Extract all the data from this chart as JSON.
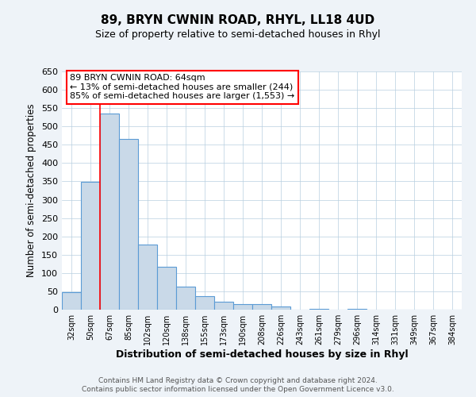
{
  "title": "89, BRYN CWNIN ROAD, RHYL, LL18 4UD",
  "subtitle": "Size of property relative to semi-detached houses in Rhyl",
  "xlabel": "Distribution of semi-detached houses by size in Rhyl",
  "ylabel": "Number of semi-detached properties",
  "bin_labels": [
    "32sqm",
    "50sqm",
    "67sqm",
    "85sqm",
    "102sqm",
    "120sqm",
    "138sqm",
    "155sqm",
    "173sqm",
    "190sqm",
    "208sqm",
    "226sqm",
    "243sqm",
    "261sqm",
    "279sqm",
    "296sqm",
    "314sqm",
    "331sqm",
    "349sqm",
    "367sqm",
    "384sqm"
  ],
  "bar_heights": [
    47,
    348,
    536,
    465,
    178,
    118,
    62,
    36,
    22,
    15,
    15,
    8,
    1,
    3,
    1,
    3,
    1,
    1,
    0,
    0,
    1
  ],
  "bar_color": "#c9d9e8",
  "bar_edge_color": "#5b9bd5",
  "red_line_x": 2,
  "annotation_line1": "89 BRYN CWNIN ROAD: 64sqm",
  "annotation_line2": "← 13% of semi-detached houses are smaller (244)",
  "annotation_line3": "85% of semi-detached houses are larger (1,553) →",
  "ylim": [
    0,
    650
  ],
  "yticks": [
    0,
    50,
    100,
    150,
    200,
    250,
    300,
    350,
    400,
    450,
    500,
    550,
    600,
    650
  ],
  "footer_line1": "Contains HM Land Registry data © Crown copyright and database right 2024.",
  "footer_line2": "Contains public sector information licensed under the Open Government Licence v3.0.",
  "background_color": "#eef3f8",
  "plot_bg_color": "#ffffff"
}
